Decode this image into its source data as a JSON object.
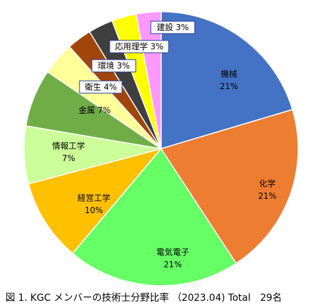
{
  "chart_data": {
    "type": "pie",
    "slices": [
      {
        "label": "機械",
        "value": 21,
        "value_label": "21%",
        "color": "#4472c4"
      },
      {
        "label": "化学",
        "value": 21,
        "value_label": "21%",
        "color": "#ed7d31"
      },
      {
        "label": "電気電子",
        "value": 21,
        "value_label": "21%",
        "color": "#66ff66"
      },
      {
        "label": "経営工学",
        "value": 10,
        "value_label": "10%",
        "color": "#ffc000"
      },
      {
        "label": "情報工学",
        "value": 7,
        "value_label": "7%",
        "color": "#ccff99"
      },
      {
        "label": "金属",
        "value": 7,
        "value_label": "7%",
        "color": "#70ad47"
      },
      {
        "label": "衛生",
        "value": 4,
        "value_label": "4%",
        "color": "#ffff99"
      },
      {
        "label": "環境",
        "value": 3,
        "value_label": "3%",
        "color": "#a0460a"
      },
      {
        "label": "応用理学",
        "value": 3,
        "value_label": "3%",
        "color": "#3f3f3f"
      },
      {
        "label": "建設",
        "value": 3,
        "value_label": "3%",
        "color": "#ffff00"
      },
      {
        "label": "",
        "value": 3,
        "value_label": "",
        "color": "#ff99ff"
      }
    ],
    "caption": "図 1. KGC メンバーの技術士分野比率 （2023.04) Total　29名"
  }
}
